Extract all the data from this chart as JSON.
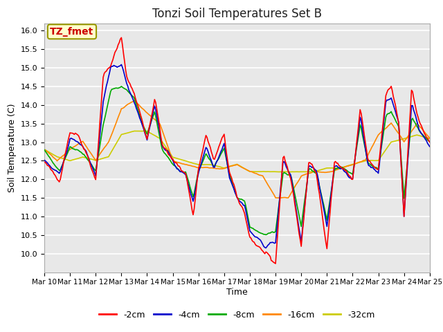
{
  "title": "Tonzi Soil Temperatures Set B",
  "xlabel": "Time",
  "ylabel": "Soil Temperature (C)",
  "ylim": [
    9.5,
    16.2
  ],
  "yticks": [
    10.0,
    10.5,
    11.0,
    11.5,
    12.0,
    12.5,
    13.0,
    13.5,
    14.0,
    14.5,
    15.0,
    15.5,
    16.0
  ],
  "xtick_labels": [
    "Mar 10",
    "Mar 11",
    "Mar 12",
    "Mar 13",
    "Mar 14",
    "Mar 15",
    "Mar 16",
    "Mar 17",
    "Mar 18",
    "Mar 19",
    "Mar 20",
    "Mar 21",
    "Mar 22",
    "Mar 23",
    "Mar 24",
    "Mar 25"
  ],
  "legend_labels": [
    "-2cm",
    "-4cm",
    "-8cm",
    "-16cm",
    "-32cm"
  ],
  "line_colors": [
    "#ff0000",
    "#0000cc",
    "#00aa00",
    "#ff8800",
    "#cccc00"
  ],
  "background_color": "#ffffff",
  "plot_bg_color": "#e8e8e8",
  "annotation_text": "TZ_fmet",
  "annotation_color": "#cc0000",
  "annotation_bg": "#ffffcc",
  "annotation_border": "#999900",
  "title_fontsize": 12,
  "tick_fontsize": 8,
  "label_fontsize": 9,
  "legend_fontsize": 9
}
